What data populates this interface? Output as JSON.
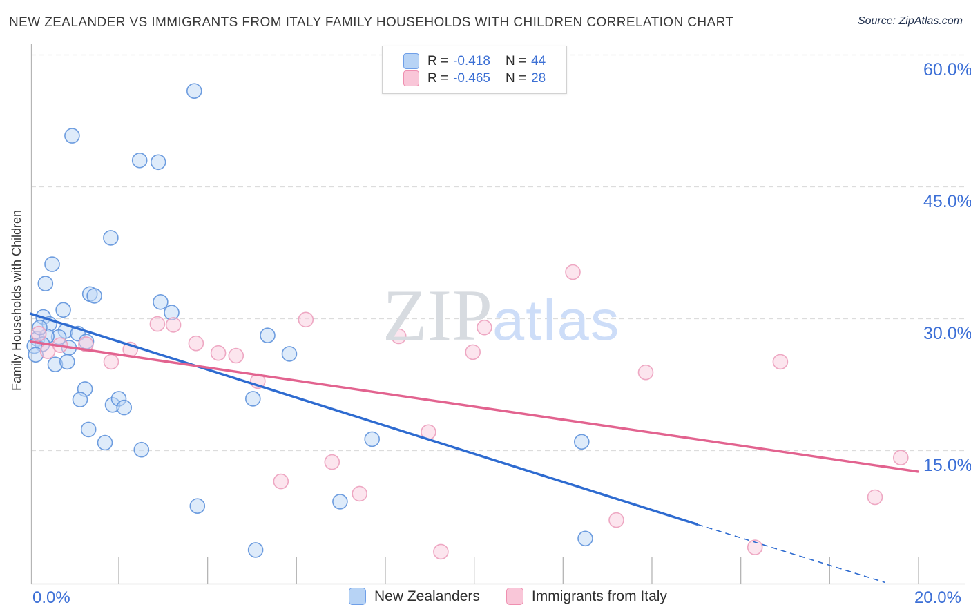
{
  "title": "NEW ZEALANDER VS IMMIGRANTS FROM ITALY FAMILY HOUSEHOLDS WITH CHILDREN CORRELATION CHART",
  "source": "Source: ZipAtlas.com",
  "watermark": {
    "zip": "ZIP",
    "atlas": "atlas"
  },
  "y_axis": {
    "title": "Family Households with Children",
    "tick_labels": [
      "60.0%",
      "45.0%",
      "30.0%",
      "15.0%"
    ]
  },
  "x_axis": {
    "left_label": "0.0%",
    "right_label": "20.0%"
  },
  "legend_stats": {
    "rows": [
      {
        "series": "New Zealanders",
        "r_label": "R =",
        "r_value": "-0.418",
        "n_label": "N =",
        "n_value": "44"
      },
      {
        "series": "Immigrants from Italy",
        "r_label": "R =",
        "r_value": "-0.465",
        "n_label": "N =",
        "n_value": "28"
      }
    ]
  },
  "bottom_legend": [
    {
      "label": "New Zealanders"
    },
    {
      "label": "Immigrants from Italy"
    }
  ],
  "colors": {
    "label_blue": "#3c6fd6",
    "grid": "#dcdcdc",
    "axis": "#b5b5b5",
    "blue_trend": "#2e6bd0",
    "pink_trend": "#e2638f"
  },
  "chart_data": {
    "type": "scatter",
    "title": "New Zealander vs Immigrants from Italy Family Households with Children",
    "xlabel": "",
    "ylabel": "Family Households with Children",
    "x_range": [
      0,
      20
    ],
    "y_range": [
      0,
      62
    ],
    "x_unit": "%",
    "y_unit": "%",
    "grid_y_values": [
      60,
      45,
      30,
      15
    ],
    "x_tick_step": 2,
    "legend_position": "bottom-center",
    "series": [
      {
        "name": "New Zealanders",
        "r": -0.418,
        "n": 44,
        "fill": "#bdd7f5",
        "stroke": "#5e92dc",
        "points": [
          [
            3.7,
            55.9
          ],
          [
            0.95,
            50.8
          ],
          [
            2.47,
            48.0
          ],
          [
            2.89,
            47.8
          ],
          [
            1.82,
            39.2
          ],
          [
            0.5,
            36.2
          ],
          [
            0.35,
            34.0
          ],
          [
            1.35,
            32.8
          ],
          [
            1.45,
            32.6
          ],
          [
            2.94,
            31.9
          ],
          [
            3.19,
            30.7
          ],
          [
            0.75,
            31.0
          ],
          [
            0.3,
            30.2
          ],
          [
            0.44,
            29.4
          ],
          [
            0.8,
            28.6
          ],
          [
            1.08,
            28.3
          ],
          [
            0.65,
            27.9
          ],
          [
            0.17,
            27.7
          ],
          [
            0.38,
            28.0
          ],
          [
            0.28,
            27.1
          ],
          [
            0.1,
            26.9
          ],
          [
            0.88,
            26.7
          ],
          [
            1.27,
            27.4
          ],
          [
            0.13,
            25.9
          ],
          [
            0.57,
            24.8
          ],
          [
            0.84,
            25.1
          ],
          [
            1.24,
            22.0
          ],
          [
            1.13,
            20.8
          ],
          [
            1.86,
            20.2
          ],
          [
            2.0,
            20.9
          ],
          [
            2.12,
            19.9
          ],
          [
            1.32,
            17.4
          ],
          [
            1.69,
            15.9
          ],
          [
            2.51,
            15.1
          ],
          [
            5.35,
            28.1
          ],
          [
            5.84,
            26.0
          ],
          [
            5.02,
            20.9
          ],
          [
            7.7,
            16.3
          ],
          [
            12.42,
            16.0
          ],
          [
            3.77,
            8.7
          ],
          [
            6.98,
            9.2
          ],
          [
            5.08,
            3.7
          ],
          [
            12.5,
            5.0
          ],
          [
            0.22,
            29.0
          ]
        ]
      },
      {
        "name": "Immigrants from Italy",
        "r": -0.465,
        "n": 28,
        "fill": "#f9cbdd",
        "stroke": "#ec9fbc",
        "points": [
          [
            0.2,
            28.3
          ],
          [
            0.4,
            26.3
          ],
          [
            0.68,
            27.0
          ],
          [
            1.26,
            27.1
          ],
          [
            1.83,
            25.1
          ],
          [
            2.26,
            26.5
          ],
          [
            2.87,
            29.4
          ],
          [
            3.23,
            29.3
          ],
          [
            3.74,
            27.2
          ],
          [
            4.24,
            26.1
          ],
          [
            4.64,
            25.8
          ],
          [
            5.13,
            22.9
          ],
          [
            6.21,
            29.9
          ],
          [
            8.3,
            28.0
          ],
          [
            9.97,
            26.2
          ],
          [
            10.23,
            29.0
          ],
          [
            12.22,
            35.3
          ],
          [
            13.86,
            23.9
          ],
          [
            16.89,
            25.1
          ],
          [
            8.97,
            17.1
          ],
          [
            6.8,
            13.7
          ],
          [
            5.65,
            11.5
          ],
          [
            7.42,
            10.1
          ],
          [
            13.2,
            7.1
          ],
          [
            9.25,
            3.5
          ],
          [
            16.32,
            4.0
          ],
          [
            19.02,
            9.7
          ],
          [
            19.6,
            14.2
          ]
        ]
      }
    ],
    "trend_lines": [
      {
        "series": "New Zealanders",
        "color": "#2e6bd0",
        "solid": [
          [
            0,
            30.6
          ],
          [
            15.03,
            6.6
          ]
        ],
        "dashed": [
          [
            15.03,
            6.6
          ],
          [
            19.25,
            0.0
          ]
        ]
      },
      {
        "series": "Immigrants from Italy",
        "color": "#e2638f",
        "solid": [
          [
            0,
            27.4
          ],
          [
            20,
            12.6
          ]
        ],
        "dashed": null
      }
    ]
  }
}
